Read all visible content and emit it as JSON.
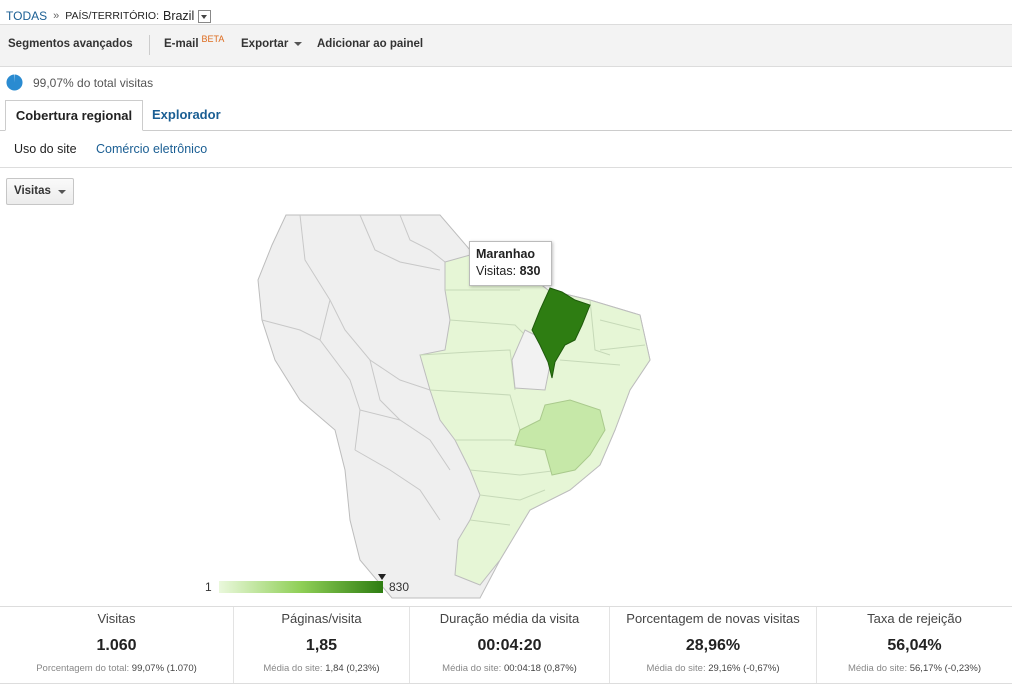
{
  "breadcrumb": {
    "root": "TODAS",
    "separator": "»",
    "key": "PAÍS/TERRITÓRIO:",
    "value": "Brazil"
  },
  "toolbar": {
    "segments": "Segmentos avançados",
    "email": "E-mail",
    "email_badge": "BETA",
    "export": "Exportar",
    "add_dashboard": "Adicionar ao painel"
  },
  "sample": {
    "text": "99,07% do total visitas",
    "fraction": 0.9907
  },
  "tabs": [
    "Cobertura regional",
    "Explorador"
  ],
  "subtabs": [
    "Uso do site",
    "Comércio eletrônico"
  ],
  "metric_select": "Visitas",
  "map": {
    "tooltip_region": "Maranhao",
    "tooltip_label": "Visitas:",
    "tooltip_value": "830",
    "legend_min": "1",
    "legend_max": "830",
    "colors": {
      "highlight": "#2e7d12",
      "medium": "#c6e8a8",
      "low": "#e6f6d6",
      "neutral": "#efefef",
      "border": "#bdbdbd"
    }
  },
  "metrics": [
    {
      "label": "Visitas",
      "value": "1.060",
      "sub_label": "Porcentagem do total:",
      "sub_value": "99,07%",
      "sub_extra": "(1.070)"
    },
    {
      "label": "Páginas/visita",
      "value": "1,85",
      "sub_label": "Média do site:",
      "sub_value": "1,84",
      "sub_extra": "(0,23%)"
    },
    {
      "label": "Duração média da visita",
      "value": "00:04:20",
      "sub_label": "Média do site:",
      "sub_value": "00:04:18",
      "sub_extra": "(0,87%)"
    },
    {
      "label": "Porcentagem de novas visitas",
      "value": "28,96%",
      "sub_label": "Média do site:",
      "sub_value": "29,16%",
      "sub_extra": "(-0,67%)"
    },
    {
      "label": "Taxa de rejeição",
      "value": "56,04%",
      "sub_label": "Média do site:",
      "sub_value": "56,17%",
      "sub_extra": "(-0,23%)"
    }
  ]
}
